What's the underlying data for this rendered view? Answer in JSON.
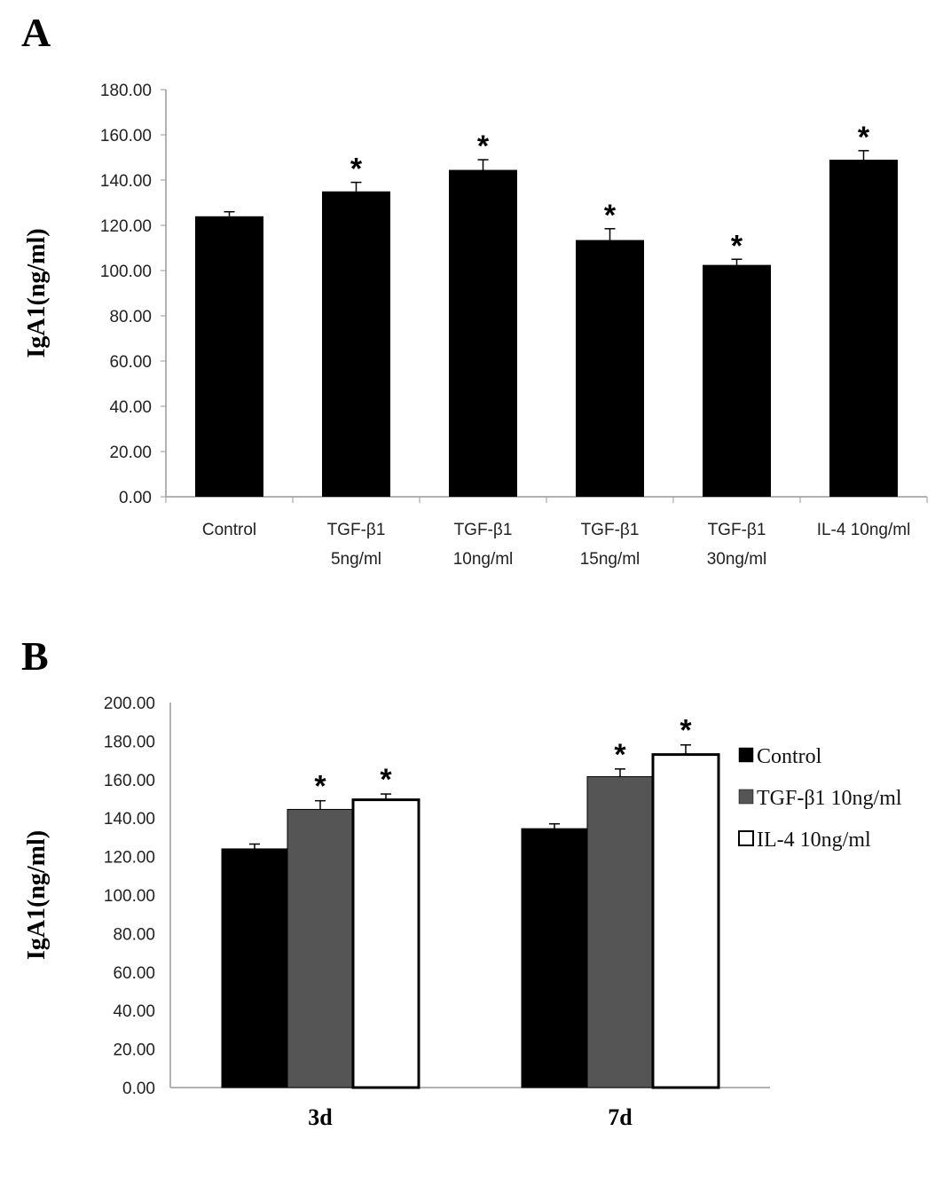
{
  "chart_data": [
    {
      "panel": "A",
      "type": "bar",
      "ylabel": "IgA1(ng/ml)",
      "ylim": [
        0,
        180
      ],
      "yticks": [
        "0.00",
        "20.00",
        "40.00",
        "60.00",
        "80.00",
        "100.00",
        "120.00",
        "140.00",
        "160.00",
        "180.00"
      ],
      "categories": [
        [
          "Control"
        ],
        [
          "TGF-β1",
          "5ng/ml"
        ],
        [
          "TGF-β1",
          "10ng/ml"
        ],
        [
          "TGF-β1",
          "15ng/ml"
        ],
        [
          "TGF-β1",
          "30ng/ml"
        ],
        [
          "IL-4 10ng/ml"
        ]
      ],
      "values": [
        124,
        135,
        144.5,
        113.5,
        102.5,
        149
      ],
      "errors": [
        2,
        4,
        4.5,
        5,
        2.5,
        4
      ],
      "significance": [
        "",
        "*",
        "*",
        "*",
        "*",
        "*"
      ],
      "bar_color": "#000000",
      "grid": false
    },
    {
      "panel": "B",
      "type": "bar",
      "ylabel": "IgA1(ng/ml)",
      "ylim": [
        0,
        200
      ],
      "yticks": [
        "0.00",
        "20.00",
        "40.00",
        "60.00",
        "80.00",
        "100.00",
        "120.00",
        "140.00",
        "160.00",
        "180.00",
        "200.00"
      ],
      "categories": [
        "3d",
        "7d"
      ],
      "series": [
        {
          "name": "Control",
          "color": "#000000",
          "values": [
            124,
            134.5
          ],
          "errors": [
            2.5,
            2.5
          ],
          "significance": [
            "",
            ""
          ]
        },
        {
          "name": "TGF-β1 10ng/ml",
          "color": "#555555",
          "values": [
            144.5,
            161.5
          ],
          "errors": [
            4.5,
            4
          ],
          "significance": [
            "*",
            "*"
          ]
        },
        {
          "name": "IL-4 10ng/ml",
          "color": "#ffffff",
          "values": [
            149.5,
            173
          ],
          "errors": [
            3,
            5
          ],
          "significance": [
            "*",
            "*"
          ]
        }
      ],
      "legend_position": "right",
      "grid": false
    }
  ]
}
